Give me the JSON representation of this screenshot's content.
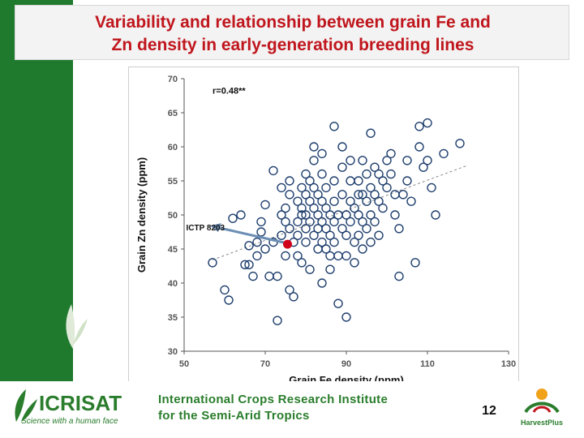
{
  "slide": {
    "title_line1": "Variability and relationship between grain Fe and",
    "title_line2": "Zn density in early-generation breeding lines",
    "slide_number": "12",
    "institute_line1": "International Crops Research Institute",
    "institute_line2": "for the Semi-Arid Tropics",
    "logo_text": "ICRISAT",
    "logo_tagline": "Science with a human face",
    "partner_logo_text": "HarvestPlus"
  },
  "colors": {
    "title": "#c0161d",
    "left_bar": "#1f7a2e",
    "markers": "#1f3f6e",
    "highlight": "#d0021b",
    "institute_text": "#2a7d2c"
  },
  "chart_data": {
    "type": "scatter",
    "xlabel": "Grain Fe density (ppm)",
    "ylabel": "Grain Zn density (ppm)",
    "xlim": [
      50,
      130
    ],
    "ylim": [
      30,
      70
    ],
    "xticks": [
      50,
      70,
      90,
      110,
      130
    ],
    "yticks": [
      30,
      35,
      40,
      45,
      50,
      55,
      60,
      65,
      70
    ],
    "grid": false,
    "annotation": "r=0.48**",
    "trendline": {
      "x": [
        57,
        120
      ],
      "y": [
        43.4,
        57.3
      ],
      "style": "dashed"
    },
    "highlight": {
      "label": "ICTP 8203",
      "x": 75.5,
      "y": 45.7
    },
    "points": [
      [
        57,
        43
      ],
      [
        60,
        39
      ],
      [
        61,
        37.5
      ],
      [
        62,
        49.5
      ],
      [
        64,
        50
      ],
      [
        65,
        42.7
      ],
      [
        66,
        45.5
      ],
      [
        66,
        42.7
      ],
      [
        67,
        41
      ],
      [
        68,
        44
      ],
      [
        68,
        46
      ],
      [
        69,
        47.5
      ],
      [
        69,
        49
      ],
      [
        70,
        51.5
      ],
      [
        70,
        45
      ],
      [
        71,
        41
      ],
      [
        72,
        56.5
      ],
      [
        72,
        46
      ],
      [
        73,
        34.5
      ],
      [
        73,
        41
      ],
      [
        74,
        54
      ],
      [
        74,
        50
      ],
      [
        74,
        47
      ],
      [
        75,
        51
      ],
      [
        75,
        49
      ],
      [
        75,
        44
      ],
      [
        76,
        55
      ],
      [
        76,
        53
      ],
      [
        76,
        48
      ],
      [
        76,
        39
      ],
      [
        77,
        38
      ],
      [
        77,
        46
      ],
      [
        78,
        52
      ],
      [
        78,
        49
      ],
      [
        78,
        47
      ],
      [
        78,
        44
      ],
      [
        79,
        54
      ],
      [
        79,
        51
      ],
      [
        79,
        43
      ],
      [
        79,
        50
      ],
      [
        80,
        56
      ],
      [
        80,
        53
      ],
      [
        80,
        50
      ],
      [
        80,
        48
      ],
      [
        80,
        46
      ],
      [
        81,
        55
      ],
      [
        81,
        52
      ],
      [
        81,
        49
      ],
      [
        81,
        42
      ],
      [
        82,
        60
      ],
      [
        82,
        58
      ],
      [
        82,
        54
      ],
      [
        82,
        51
      ],
      [
        82,
        47
      ],
      [
        83,
        53
      ],
      [
        83,
        50
      ],
      [
        83,
        48
      ],
      [
        83,
        45
      ],
      [
        84,
        59
      ],
      [
        84,
        56
      ],
      [
        84,
        52
      ],
      [
        84,
        49
      ],
      [
        84,
        46
      ],
      [
        84,
        40
      ],
      [
        85,
        54
      ],
      [
        85,
        51
      ],
      [
        85,
        48
      ],
      [
        85,
        45
      ],
      [
        86,
        50
      ],
      [
        86,
        47
      ],
      [
        86,
        44
      ],
      [
        86,
        42
      ],
      [
        87,
        63
      ],
      [
        87,
        55
      ],
      [
        87,
        52
      ],
      [
        87,
        49
      ],
      [
        87,
        46
      ],
      [
        88,
        37
      ],
      [
        88,
        44
      ],
      [
        88,
        50
      ],
      [
        89,
        57
      ],
      [
        89,
        60
      ],
      [
        89,
        53
      ],
      [
        89,
        48
      ],
      [
        90,
        50
      ],
      [
        90,
        47
      ],
      [
        90,
        44
      ],
      [
        90,
        35
      ],
      [
        91,
        58
      ],
      [
        91,
        55
      ],
      [
        91,
        52
      ],
      [
        91,
        49
      ],
      [
        92,
        51
      ],
      [
        92,
        46
      ],
      [
        92,
        43
      ],
      [
        93,
        55
      ],
      [
        93,
        53
      ],
      [
        93,
        50
      ],
      [
        93,
        47
      ],
      [
        94,
        58
      ],
      [
        94,
        53
      ],
      [
        94,
        49
      ],
      [
        94,
        45
      ],
      [
        95,
        56
      ],
      [
        95,
        52
      ],
      [
        95,
        48
      ],
      [
        96,
        62
      ],
      [
        96,
        54
      ],
      [
        96,
        50
      ],
      [
        96,
        46
      ],
      [
        97,
        57
      ],
      [
        97,
        53
      ],
      [
        97,
        49
      ],
      [
        98,
        56
      ],
      [
        98,
        52
      ],
      [
        98,
        47
      ],
      [
        99,
        55
      ],
      [
        99,
        51
      ],
      [
        100,
        58
      ],
      [
        100,
        54
      ],
      [
        101,
        59
      ],
      [
        101,
        56
      ],
      [
        102,
        53
      ],
      [
        102,
        50
      ],
      [
        103,
        48
      ],
      [
        103,
        41
      ],
      [
        104,
        53
      ],
      [
        105,
        58
      ],
      [
        105,
        55
      ],
      [
        106,
        52
      ],
      [
        107,
        43
      ],
      [
        108,
        60
      ],
      [
        108,
        63
      ],
      [
        109,
        57
      ],
      [
        110,
        58
      ],
      [
        110,
        63.5
      ],
      [
        111,
        54
      ],
      [
        112,
        50
      ],
      [
        114,
        59
      ],
      [
        118,
        60.5
      ]
    ]
  }
}
